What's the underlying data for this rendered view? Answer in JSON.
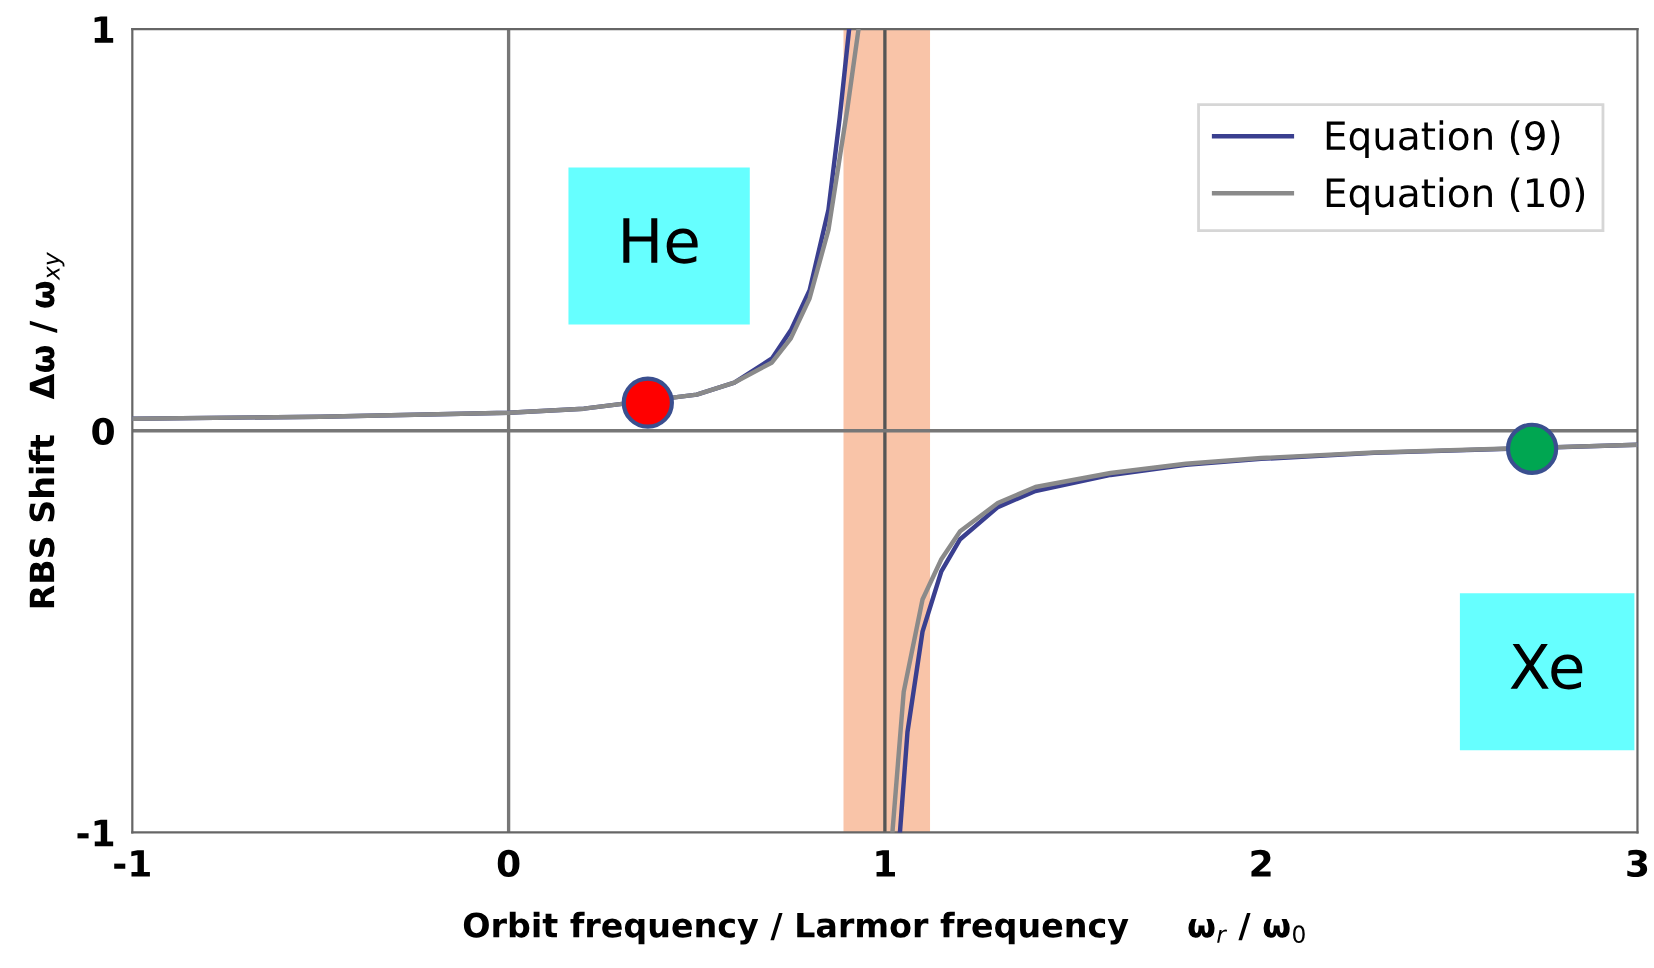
{
  "chart_data": {
    "type": "line",
    "xlabel": "Orbit frequency / Larmor frequency     ω$_{r}$ / ω$_{0}$",
    "ylabel": "RBS Shift   Δω / ω$_{xy}$",
    "xlim": [
      -1,
      3
    ],
    "ylim": [
      -1,
      1
    ],
    "xticks": [
      -1,
      0,
      1,
      2,
      3
    ],
    "yticks": [
      -1,
      0,
      1
    ],
    "grid": false,
    "legend": "top right",
    "line_style": "solid",
    "series": [
      {
        "name": "Equation (9)",
        "color": "#3a3f8f",
        "marker": "none",
        "x": [
          -1,
          -0.5,
          0,
          0.2,
          0.5,
          0.6,
          0.7,
          0.75,
          0.8,
          0.85,
          0.88,
          0.905,
          null,
          1.04,
          1.06,
          1.1,
          1.15,
          1.2,
          1.3,
          1.4,
          1.6,
          1.8,
          2.0,
          2.3,
          3
        ],
        "values": [
          0.03,
          0.035,
          0.045,
          0.055,
          0.09,
          0.12,
          0.18,
          0.25,
          0.35,
          0.55,
          0.78,
          1.0,
          null,
          -1.0,
          -0.75,
          -0.5,
          -0.35,
          -0.27,
          -0.19,
          -0.15,
          -0.11,
          -0.085,
          -0.07,
          -0.055,
          -0.035
        ]
      },
      {
        "name": "Equation (10)",
        "color": "#8a8a8a",
        "marker": "none",
        "x": [
          -1,
          -0.5,
          0,
          0.2,
          0.5,
          0.6,
          0.7,
          0.75,
          0.8,
          0.85,
          0.9,
          0.93,
          null,
          1.02,
          1.05,
          1.1,
          1.15,
          1.2,
          1.3,
          1.4,
          1.6,
          1.8,
          2.0,
          2.3,
          3
        ],
        "values": [
          0.03,
          0.035,
          0.045,
          0.055,
          0.09,
          0.12,
          0.17,
          0.23,
          0.33,
          0.5,
          0.8,
          1.0,
          null,
          -1.0,
          -0.65,
          -0.42,
          -0.32,
          -0.25,
          -0.18,
          -0.14,
          -0.105,
          -0.082,
          -0.068,
          -0.054,
          -0.035
        ]
      },
      {
        "type": "scatter",
        "marker": "circle",
        "color": "#ff0000",
        "x": [
          0.37
        ],
        "values": [
          0.07
        ]
      },
      {
        "type": "scatter",
        "marker": "circle",
        "color": "#00a651",
        "x": [
          2.72
        ],
        "values": [
          -0.045
        ]
      }
    ],
    "ref_lines": [
      {
        "axis": "x",
        "value": 0,
        "color": "#777777"
      },
      {
        "axis": "x",
        "value": 1,
        "color": "#555555"
      },
      {
        "axis": "y",
        "value": 0,
        "color": "#777777"
      }
    ],
    "bands": [
      {
        "axis": "x",
        "from": 0.89,
        "to": 1.12,
        "color": "#f9c4a8"
      }
    ],
    "annotations": [
      "He",
      "Xe"
    ]
  }
}
